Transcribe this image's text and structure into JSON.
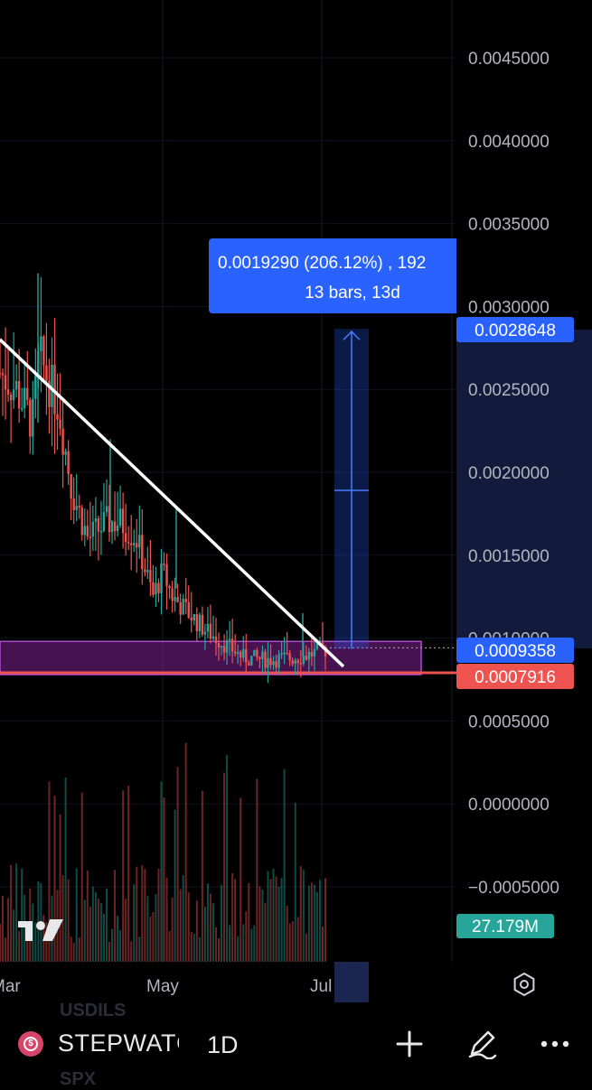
{
  "chart_data": {
    "type": "candlestick",
    "y_axis": {
      "ticks": [
        "0.0045000",
        "0.0040000",
        "0.0035000",
        "0.0030000",
        "0.0025000",
        "0.0020000",
        "0.0015000",
        "0.0010000",
        "0.0005000",
        "0.0000000",
        "−0.0005000"
      ],
      "range": [
        -0.00055,
        0.0048
      ]
    },
    "x_axis": {
      "ticks": [
        "Mar",
        "May",
        "Jul"
      ]
    },
    "price_labels": {
      "target": "0.0028648",
      "current": "0.0009358",
      "support": "0.0007916"
    },
    "volume_label": "27.179M",
    "measure_tooltip": {
      "line1": "0.0019290 (206.12%) , 192",
      "line2": "13 bars, 13d"
    },
    "measure": {
      "from": 0.0009358,
      "to": 0.0028648
    },
    "trendline": {
      "from": 0.0029,
      "to": 0.00079
    },
    "support_zone": [
      0.00078,
      0.00098
    ],
    "support_line": 0.0007916,
    "colors": {
      "up": "#26a69a",
      "down": "#ef5350",
      "measure": "#2962ff",
      "zone": "#9c27b0"
    }
  },
  "bottom": {
    "symbol": "STEPWATCH",
    "timeframe": "1D",
    "ghost_top": "USDILS",
    "ghost_bottom": "SPX"
  },
  "icons": [
    "tradingview-logo-icon",
    "chart-settings-icon",
    "coin-icon",
    "plus-icon",
    "draw-pen-icon",
    "more-icon"
  ]
}
